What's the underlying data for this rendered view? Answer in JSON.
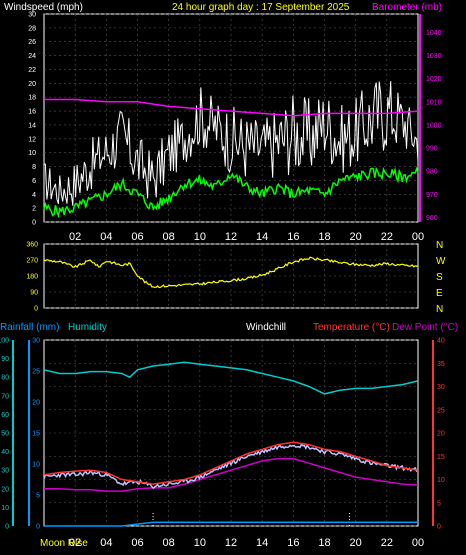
{
  "header": {
    "windspeed_label": "Windspeed (mph)",
    "title": "24 hour graph day : 17 September 2025",
    "barometer_label": "Barometer (mb)"
  },
  "lower_header": {
    "rainfall_label": "Rainfall (mm)",
    "humidity_label": "Humidity",
    "windchill_label": "Windchill",
    "temperature_label": "Temperature (°C)",
    "dewpoint_label": "Dew Point (°C)"
  },
  "footer": {
    "moon_rise_label": "Moon Rise"
  },
  "colors": {
    "background": "#000000",
    "panel_border": "#ffffff",
    "grid": "#555555",
    "windspeed": "#ffffff",
    "wind_avg": "#00ff00",
    "barometer": "#ff00ff",
    "direction": "#ffff00",
    "humidity": "#00cccc",
    "rainfall": "#0099ff",
    "temperature": "#ff3333",
    "windchill": "#c0c0ff",
    "dewpoint": "#cc00cc",
    "title": "#ffff00"
  },
  "chart_data": [
    {
      "type": "line",
      "x_label": "hour",
      "x_ticks": [
        "02",
        "04",
        "06",
        "08",
        "10",
        "12",
        "14",
        "16",
        "18",
        "20",
        "22",
        "00"
      ],
      "xlim": [
        0,
        24
      ],
      "grid": true,
      "y_left": {
        "label": "Windspeed (mph)",
        "ticks": [
          0,
          2,
          4,
          6,
          8,
          10,
          12,
          14,
          16,
          18,
          20,
          22,
          24,
          26,
          28,
          30
        ],
        "ylim": [
          0,
          30
        ]
      },
      "y_right": {
        "label": "Barometer (mb)",
        "ticks": [
          960,
          970,
          980,
          990,
          1000,
          1010,
          1020,
          1030,
          1040
        ],
        "ylim": [
          958,
          1048
        ]
      },
      "series": [
        {
          "name": "Windspeed (mph)",
          "axis": "left",
          "x": [
            0,
            1,
            2,
            3,
            4,
            5,
            6,
            7,
            8,
            9,
            10,
            11,
            12,
            13,
            14,
            15,
            16,
            17,
            18,
            19,
            20,
            21,
            22,
            23,
            24
          ],
          "high": [
            9,
            7,
            9,
            12,
            14,
            17,
            13,
            10,
            14,
            16,
            20,
            18,
            17,
            16,
            15,
            17,
            19,
            18,
            20,
            17,
            18,
            21,
            22,
            19,
            15
          ],
          "low": [
            2,
            1,
            1,
            3,
            5,
            6,
            3,
            1,
            4,
            7,
            9,
            8,
            5,
            4,
            5,
            4,
            5,
            4,
            7,
            5,
            6,
            7,
            8,
            9,
            7
          ]
        },
        {
          "name": "Wind average",
          "axis": "left",
          "x": [
            0,
            1,
            2,
            3,
            4,
            5,
            6,
            7,
            8,
            9,
            10,
            11,
            12,
            13,
            14,
            15,
            16,
            17,
            18,
            19,
            20,
            21,
            22,
            23,
            24
          ],
          "y": [
            2,
            1.5,
            2,
            3,
            4,
            5.5,
            4,
            2,
            3.5,
            5.5,
            6,
            5,
            7,
            5,
            4,
            5,
            4,
            4.5,
            4,
            6,
            6.5,
            7,
            7,
            6.5,
            7
          ]
        },
        {
          "name": "Barometer (mb)",
          "axis": "right",
          "x": [
            0,
            2,
            4,
            6,
            8,
            10,
            12,
            14,
            16,
            18,
            20,
            22,
            24
          ],
          "y": [
            1011,
            1011,
            1010,
            1010,
            1008,
            1007,
            1006,
            1005,
            1004,
            1005,
            1005,
            1005,
            1006
          ]
        }
      ]
    },
    {
      "type": "line",
      "x_ticks": [
        "02",
        "04",
        "06",
        "08",
        "10",
        "12",
        "14",
        "16",
        "18",
        "20",
        "22",
        "00"
      ],
      "xlim": [
        0,
        24
      ],
      "grid": true,
      "y_left": {
        "ticks": [
          0,
          90,
          180,
          270,
          360
        ],
        "ylim": [
          0,
          360
        ]
      },
      "y_right": {
        "ticks": [
          "N",
          "W",
          "S",
          "E",
          "N"
        ]
      },
      "series": [
        {
          "name": "Wind direction",
          "x": [
            0,
            1,
            2,
            3,
            3.5,
            4,
            5,
            5.5,
            6,
            6.5,
            7,
            8,
            9,
            10,
            11,
            12,
            13,
            14,
            15,
            16,
            17,
            18,
            19,
            20,
            21,
            22,
            23,
            24
          ],
          "y": [
            270,
            260,
            230,
            270,
            230,
            265,
            240,
            250,
            185,
            145,
            120,
            125,
            130,
            135,
            145,
            155,
            165,
            185,
            220,
            260,
            280,
            270,
            255,
            245,
            240,
            250,
            240,
            235
          ]
        }
      ]
    },
    {
      "type": "line",
      "x_ticks": [
        "02",
        "04",
        "06",
        "08",
        "10",
        "12",
        "14",
        "16",
        "18",
        "20",
        "22",
        "00"
      ],
      "xlim": [
        0,
        24
      ],
      "grid": true,
      "y_humidity": {
        "label": "Humidity",
        "ticks": [
          0,
          10,
          20,
          30,
          40,
          50,
          60,
          70,
          80,
          90,
          100
        ],
        "ylim": [
          0,
          100
        ]
      },
      "y_rainfall": {
        "label": "Rainfall (mm)",
        "ticks": [
          0,
          5,
          10,
          15,
          20,
          25,
          30
        ],
        "ylim": [
          0,
          30
        ]
      },
      "y_temperature": {
        "label": "Temperature (°C)",
        "ticks": [
          0,
          5,
          10,
          15,
          20,
          25,
          30,
          35,
          40
        ],
        "ylim": [
          0,
          40
        ]
      },
      "series": [
        {
          "name": "Humidity",
          "axis": "humidity",
          "x": [
            0,
            1,
            2,
            3,
            4,
            5,
            5.5,
            6,
            7,
            8,
            9,
            10,
            11,
            12,
            13,
            14,
            15,
            16,
            17,
            18,
            19,
            20,
            21,
            22,
            23,
            24
          ],
          "y": [
            84,
            82,
            82,
            83,
            83,
            82,
            80,
            84,
            86,
            87,
            88,
            87,
            86,
            85,
            84,
            82,
            80,
            78,
            75,
            71,
            73,
            74,
            74,
            75,
            76,
            78
          ]
        },
        {
          "name": "Rainfall (mm)",
          "axis": "rainfall",
          "x": [
            0,
            5,
            6,
            7,
            24
          ],
          "y": [
            0,
            0,
            0.3,
            0.6,
            0.6
          ]
        },
        {
          "name": "Temperature (°C)",
          "axis": "temperature",
          "x": [
            0,
            1,
            2,
            3,
            4,
            5,
            6,
            7,
            8,
            9,
            10,
            11,
            12,
            13,
            14,
            15,
            16,
            17,
            18,
            19,
            20,
            21,
            22,
            23,
            24
          ],
          "y": [
            11,
            11.5,
            11.8,
            12,
            11.5,
            10,
            9.5,
            9,
            9.5,
            10,
            11,
            12.5,
            14,
            15.5,
            16.5,
            17.5,
            18,
            17.5,
            16.5,
            16,
            15,
            14,
            13,
            12.5,
            12
          ]
        },
        {
          "name": "Windchill",
          "axis": "temperature",
          "x": [
            0,
            1,
            2,
            3,
            4,
            5,
            6,
            7,
            8,
            9,
            10,
            11,
            12,
            13,
            14,
            15,
            16,
            17,
            18,
            19,
            20,
            21,
            22,
            23,
            24
          ],
          "y": [
            10.5,
            11,
            11,
            11.5,
            11,
            9,
            9.5,
            8.5,
            9,
            9.5,
            10.5,
            12,
            13.5,
            15,
            16,
            17,
            17.5,
            17,
            16,
            15.5,
            14.5,
            13.5,
            13,
            12.5,
            12
          ]
        },
        {
          "name": "Dew Point (°C)",
          "axis": "temperature",
          "x": [
            0,
            1,
            2,
            3,
            4,
            5,
            6,
            7,
            8,
            9,
            10,
            11,
            12,
            13,
            14,
            15,
            16,
            17,
            18,
            19,
            20,
            21,
            22,
            23,
            24
          ],
          "y": [
            8,
            8,
            7.8,
            7.8,
            7.5,
            7.5,
            8,
            8.2,
            8.2,
            9,
            10,
            11,
            12,
            13,
            14,
            14.5,
            14.5,
            13.5,
            12.5,
            11.5,
            10.5,
            10,
            9.5,
            9,
            8.8
          ]
        }
      ],
      "markers": [
        {
          "name": "Moon Rise",
          "x": 7.0
        },
        {
          "x": 19.6
        }
      ]
    }
  ]
}
